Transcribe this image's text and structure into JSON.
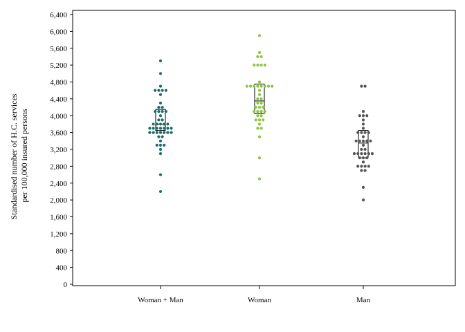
{
  "chart_data": {
    "type": "scatter",
    "subtype": "dot-strip with interquartile box",
    "ylabel_line1": "Standardised number of H.C. services",
    "ylabel_line2": "per 100,000 insured persons",
    "xlabel": "",
    "ylim": [
      0,
      6400
    ],
    "yticks": [
      0,
      400,
      800,
      1200,
      1600,
      2000,
      2400,
      2800,
      3200,
      3600,
      4000,
      4400,
      4800,
      5200,
      5600,
      6000,
      6400
    ],
    "ytick_labels": [
      "0",
      "400",
      "800",
      "1,200",
      "1,600",
      "2,000",
      "2,400",
      "2,800",
      "3,200",
      "3,600",
      "4,000",
      "4,400",
      "4,800",
      "5,200",
      "5,600",
      "6,000",
      "6,400"
    ],
    "categories": [
      "Woman + Man",
      "Woman",
      "Man"
    ],
    "grid": false,
    "legend": "none",
    "series": [
      {
        "category": "Woman + Man",
        "color": "#1f6b6b",
        "q1": 3650,
        "median": 3800,
        "q3": 4150,
        "values": [
          5300,
          5000,
          4700,
          4600,
          4600,
          4600,
          4600,
          4500,
          4300,
          4200,
          4200,
          4100,
          4100,
          4100,
          4100,
          4000,
          3900,
          3900,
          3800,
          3800,
          3800,
          3800,
          3800,
          3700,
          3700,
          3700,
          3700,
          3700,
          3700,
          3700,
          3600,
          3600,
          3600,
          3600,
          3600,
          3600,
          3600,
          3500,
          3500,
          3400,
          3300,
          3300,
          3300,
          3200,
          3100,
          2600,
          2200
        ]
      },
      {
        "category": "Woman",
        "color": "#8cc63f",
        "q1": 4050,
        "median": 4350,
        "q3": 4750,
        "values": [
          5900,
          5500,
          5400,
          5400,
          5200,
          5200,
          5200,
          5200,
          4800,
          4700,
          4700,
          4700,
          4700,
          4700,
          4700,
          4700,
          4700,
          4600,
          4500,
          4400,
          4400,
          4300,
          4300,
          4200,
          4200,
          4200,
          4100,
          4100,
          4100,
          4100,
          4000,
          4000,
          3900,
          3900,
          3900,
          3800,
          3700,
          3700,
          3500,
          3000,
          2500
        ]
      },
      {
        "category": "Man",
        "color": "#555555",
        "q1": 3000,
        "median": 3350,
        "q3": 3650,
        "values": [
          4700,
          4700,
          4100,
          4000,
          4000,
          4000,
          3900,
          3800,
          3700,
          3600,
          3600,
          3600,
          3600,
          3500,
          3400,
          3400,
          3400,
          3400,
          3400,
          3300,
          3200,
          3200,
          3100,
          3100,
          3100,
          3100,
          3100,
          3100,
          3000,
          3000,
          3000,
          2900,
          2800,
          2800,
          2800,
          2800,
          2700,
          2700,
          2300,
          2000
        ]
      }
    ]
  }
}
